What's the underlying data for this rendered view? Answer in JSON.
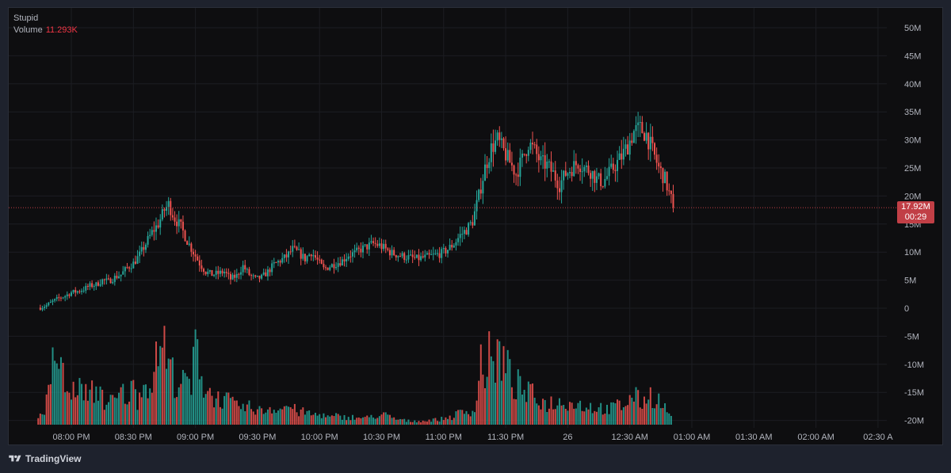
{
  "legend": {
    "symbol": "Stupid",
    "volume_label": "Volume",
    "volume_value": "11.293K"
  },
  "price_tag": {
    "price": "17.92M",
    "countdown": "00:29"
  },
  "branding": {
    "name": "TradingView"
  },
  "colors": {
    "background": "#0e0e10",
    "grid": "#1c1d22",
    "up": "#26a69a",
    "down": "#ef5350",
    "price_line": "#c13f46",
    "axis_text": "#b2b5be"
  },
  "chart_data": {
    "type": "candlestick",
    "title": "Stupid",
    "y_axis": {
      "ticks": [
        "50M",
        "45M",
        "40M",
        "35M",
        "30M",
        "25M",
        "20M",
        "15M",
        "10M",
        "5M",
        "0",
        "-5M",
        "-10M",
        "-15M",
        "-20M"
      ],
      "tick_values": [
        50,
        45,
        40,
        35,
        30,
        25,
        20,
        15,
        10,
        5,
        0,
        -5,
        -10,
        -15,
        -20
      ],
      "range": [
        -20,
        50
      ],
      "unit": "M"
    },
    "x_axis": {
      "ticks": [
        "08:00 PM",
        "08:30 PM",
        "09:00 PM",
        "09:30 PM",
        "10:00 PM",
        "10:30 PM",
        "11:00 PM",
        "11:30 PM",
        "26",
        "12:30 AM",
        "01:00 AM",
        "01:30 AM",
        "02:00 AM",
        "02:30 A"
      ],
      "tick_minutes": [
        0,
        30,
        60,
        90,
        120,
        150,
        180,
        210,
        240,
        270,
        300,
        330,
        360,
        390
      ],
      "range_minutes": [
        -20,
        405
      ]
    },
    "last_price": 17.92,
    "price_path": [
      [
        -15,
        0.1
      ],
      [
        -12,
        0.5
      ],
      [
        -9,
        1.2
      ],
      [
        -6,
        1.8
      ],
      [
        -3,
        2.2
      ],
      [
        0,
        2.8
      ],
      [
        3,
        3.0
      ],
      [
        6,
        3.4
      ],
      [
        9,
        4.0
      ],
      [
        12,
        4.2
      ],
      [
        15,
        5.0
      ],
      [
        18,
        4.8
      ],
      [
        21,
        5.5
      ],
      [
        24,
        6.0
      ],
      [
        27,
        7.2
      ],
      [
        30,
        8.0
      ],
      [
        33,
        9.5
      ],
      [
        36,
        11.5
      ],
      [
        39,
        13.5
      ],
      [
        42,
        15.0
      ],
      [
        45,
        17.5
      ],
      [
        47,
        18.5
      ],
      [
        50,
        16.0
      ],
      [
        53,
        14.5
      ],
      [
        56,
        12.0
      ],
      [
        59,
        10.0
      ],
      [
        62,
        8.0
      ],
      [
        65,
        6.5
      ],
      [
        68,
        6.0
      ],
      [
        71,
        6.2
      ],
      [
        74,
        6.5
      ],
      [
        77,
        5.2
      ],
      [
        80,
        5.8
      ],
      [
        83,
        7.5
      ],
      [
        86,
        6.0
      ],
      [
        89,
        5.2
      ],
      [
        92,
        5.5
      ],
      [
        95,
        6.5
      ],
      [
        98,
        7.8
      ],
      [
        101,
        8.5
      ],
      [
        104,
        9.2
      ],
      [
        107,
        10.5
      ],
      [
        110,
        9.8
      ],
      [
        113,
        8.8
      ],
      [
        116,
        10.0
      ],
      [
        119,
        8.5
      ],
      [
        122,
        7.0
      ],
      [
        125,
        7.5
      ],
      [
        128,
        8.0
      ],
      [
        131,
        8.5
      ],
      [
        134,
        9.5
      ],
      [
        137,
        9.8
      ],
      [
        140,
        10.5
      ],
      [
        143,
        11.0
      ],
      [
        146,
        11.5
      ],
      [
        149,
        11.2
      ],
      [
        152,
        10.5
      ],
      [
        155,
        9.8
      ],
      [
        158,
        9.5
      ],
      [
        161,
        9.2
      ],
      [
        164,
        9.0
      ],
      [
        167,
        8.8
      ],
      [
        170,
        9.0
      ],
      [
        173,
        9.2
      ],
      [
        176,
        9.5
      ],
      [
        179,
        9.8
      ],
      [
        182,
        10.5
      ],
      [
        185,
        11.5
      ],
      [
        188,
        13.0
      ],
      [
        191,
        14.0
      ],
      [
        194,
        15.5
      ],
      [
        197,
        20.0
      ],
      [
        200,
        25.0
      ],
      [
        203,
        28.5
      ],
      [
        206,
        30.0
      ],
      [
        209,
        28.0
      ],
      [
        212,
        26.0
      ],
      [
        215,
        24.0
      ],
      [
        218,
        26.5
      ],
      [
        221,
        29.5
      ],
      [
        224,
        28.0
      ],
      [
        227,
        26.0
      ],
      [
        230,
        25.5
      ],
      [
        233,
        24.0
      ],
      [
        236,
        22.0
      ],
      [
        239,
        24.0
      ],
      [
        242,
        25.0
      ],
      [
        245,
        26.0
      ],
      [
        248,
        25.0
      ],
      [
        251,
        24.5
      ],
      [
        254,
        23.0
      ],
      [
        257,
        22.5
      ],
      [
        260,
        24.0
      ],
      [
        263,
        25.5
      ],
      [
        266,
        27.0
      ],
      [
        269,
        29.0
      ],
      [
        272,
        31.5
      ],
      [
        275,
        32.0
      ],
      [
        278,
        31.0
      ],
      [
        281,
        28.0
      ],
      [
        284,
        25.0
      ],
      [
        287,
        23.0
      ],
      [
        289,
        20.5
      ],
      [
        291,
        18.5
      ]
    ],
    "volume_profile": [
      [
        -16,
        0.3
      ],
      [
        -13,
        0.6
      ],
      [
        -10,
        1.5
      ],
      [
        -8,
        3.2
      ],
      [
        -6,
        2.4
      ],
      [
        -4,
        1.9
      ],
      [
        -2,
        1.3
      ],
      [
        0,
        1.1
      ],
      [
        2,
        1.6
      ],
      [
        4,
        1.4
      ],
      [
        6,
        1.5
      ],
      [
        8,
        1.0
      ],
      [
        10,
        1.3
      ],
      [
        12,
        1.2
      ],
      [
        14,
        1.6
      ],
      [
        16,
        0.9
      ],
      [
        18,
        0.8
      ],
      [
        20,
        1.0
      ],
      [
        22,
        0.9
      ],
      [
        24,
        1.4
      ],
      [
        26,
        1.1
      ],
      [
        28,
        1.2
      ],
      [
        30,
        1.5
      ],
      [
        32,
        1.0
      ],
      [
        34,
        1.8
      ],
      [
        36,
        1.5
      ],
      [
        38,
        1.9
      ],
      [
        40,
        1.9
      ],
      [
        42,
        3.0
      ],
      [
        44,
        3.8
      ],
      [
        46,
        2.5
      ],
      [
        48,
        2.3
      ],
      [
        50,
        1.8
      ],
      [
        52,
        1.7
      ],
      [
        54,
        1.6
      ],
      [
        56,
        1.8
      ],
      [
        58,
        1.4
      ],
      [
        60,
        3.2
      ],
      [
        62,
        2.7
      ],
      [
        64,
        1.5
      ],
      [
        66,
        1.4
      ],
      [
        68,
        1.2
      ],
      [
        70,
        1.0
      ],
      [
        72,
        1.1
      ],
      [
        74,
        0.9
      ],
      [
        76,
        1.0
      ],
      [
        78,
        0.8
      ],
      [
        80,
        0.7
      ],
      [
        82,
        0.8
      ],
      [
        84,
        0.6
      ],
      [
        86,
        0.7
      ],
      [
        88,
        0.6
      ],
      [
        90,
        0.7
      ],
      [
        92,
        0.5
      ],
      [
        94,
        0.6
      ],
      [
        96,
        0.7
      ],
      [
        98,
        0.6
      ],
      [
        100,
        0.8
      ],
      [
        102,
        0.6
      ],
      [
        104,
        0.8
      ],
      [
        106,
        0.7
      ],
      [
        108,
        0.6
      ],
      [
        110,
        0.5
      ],
      [
        112,
        0.5
      ],
      [
        114,
        0.5
      ],
      [
        116,
        0.4
      ],
      [
        118,
        0.4
      ],
      [
        120,
        0.4
      ],
      [
        122,
        0.4
      ],
      [
        124,
        0.3
      ],
      [
        126,
        0.3
      ],
      [
        128,
        0.35
      ],
      [
        130,
        0.3
      ],
      [
        132,
        0.3
      ],
      [
        134,
        0.3
      ],
      [
        136,
        0.3
      ],
      [
        138,
        0.25
      ],
      [
        140,
        0.3
      ],
      [
        142,
        0.25
      ],
      [
        144,
        0.3
      ],
      [
        146,
        0.4
      ],
      [
        148,
        0.3
      ],
      [
        150,
        0.35
      ],
      [
        152,
        0.4
      ],
      [
        154,
        0.3
      ],
      [
        156,
        0.25
      ],
      [
        158,
        0.2
      ],
      [
        160,
        0.2
      ],
      [
        162,
        0.15
      ],
      [
        164,
        0.15
      ],
      [
        166,
        0.15
      ],
      [
        168,
        0.15
      ],
      [
        170,
        0.15
      ],
      [
        172,
        0.15
      ],
      [
        174,
        0.2
      ],
      [
        176,
        0.2
      ],
      [
        178,
        0.2
      ],
      [
        180,
        0.25
      ],
      [
        182,
        0.3
      ],
      [
        184,
        0.3
      ],
      [
        186,
        0.4
      ],
      [
        188,
        0.5
      ],
      [
        190,
        0.5
      ],
      [
        192,
        0.6
      ],
      [
        194,
        0.5
      ],
      [
        196,
        1.0
      ],
      [
        198,
        2.6
      ],
      [
        200,
        2.0
      ],
      [
        202,
        2.7
      ],
      [
        204,
        2.3
      ],
      [
        206,
        2.8
      ],
      [
        208,
        2.6
      ],
      [
        210,
        2.4
      ],
      [
        212,
        2.0
      ],
      [
        214,
        1.5
      ],
      [
        216,
        1.6
      ],
      [
        218,
        1.4
      ],
      [
        220,
        1.2
      ],
      [
        222,
        1.3
      ],
      [
        224,
        1.1
      ],
      [
        226,
        1.0
      ],
      [
        228,
        0.9
      ],
      [
        230,
        0.8
      ],
      [
        232,
        0.9
      ],
      [
        234,
        0.8
      ],
      [
        236,
        0.9
      ],
      [
        238,
        1.0
      ],
      [
        240,
        0.9
      ],
      [
        242,
        0.8
      ],
      [
        244,
        0.9
      ],
      [
        246,
        0.8
      ],
      [
        248,
        0.7
      ],
      [
        250,
        0.8
      ],
      [
        252,
        0.7
      ],
      [
        254,
        0.6
      ],
      [
        256,
        0.7
      ],
      [
        258,
        0.6
      ],
      [
        260,
        0.6
      ],
      [
        262,
        0.7
      ],
      [
        264,
        0.8
      ],
      [
        266,
        0.7
      ],
      [
        268,
        0.9
      ],
      [
        270,
        1.0
      ],
      [
        272,
        1.2
      ],
      [
        274,
        1.0
      ],
      [
        276,
        0.9
      ],
      [
        278,
        1.1
      ],
      [
        280,
        1.2
      ],
      [
        282,
        1.0
      ],
      [
        284,
        1.0
      ],
      [
        286,
        0.7
      ],
      [
        288,
        0.6
      ],
      [
        290,
        0.3
      ]
    ]
  }
}
